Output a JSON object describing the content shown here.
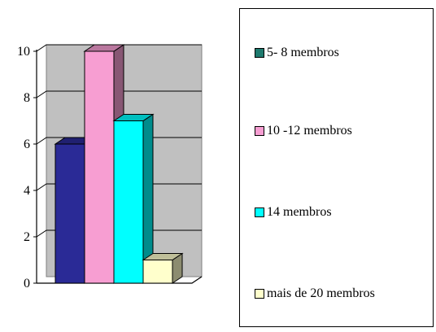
{
  "chart_data": {
    "type": "bar",
    "categories": [
      "5- 8 membros",
      "10 -12 membros",
      "14 membros",
      "mais de 20 membros"
    ],
    "values": [
      6,
      10,
      7,
      1
    ],
    "ylim": [
      0,
      10
    ],
    "yticks": [
      "0",
      "2",
      "4",
      "6",
      "8",
      "10"
    ],
    "grid": true,
    "legend_position": "right",
    "colors": {
      "bars": [
        "#2a2a96",
        "#f79ed2",
        "#00ffff",
        "#ffffcc"
      ],
      "legend_swatches": [
        "#1e7a6e",
        "#f79ed2",
        "#00ffff",
        "#ffffcc"
      ],
      "plot_wall": "#c0c0c0"
    }
  }
}
